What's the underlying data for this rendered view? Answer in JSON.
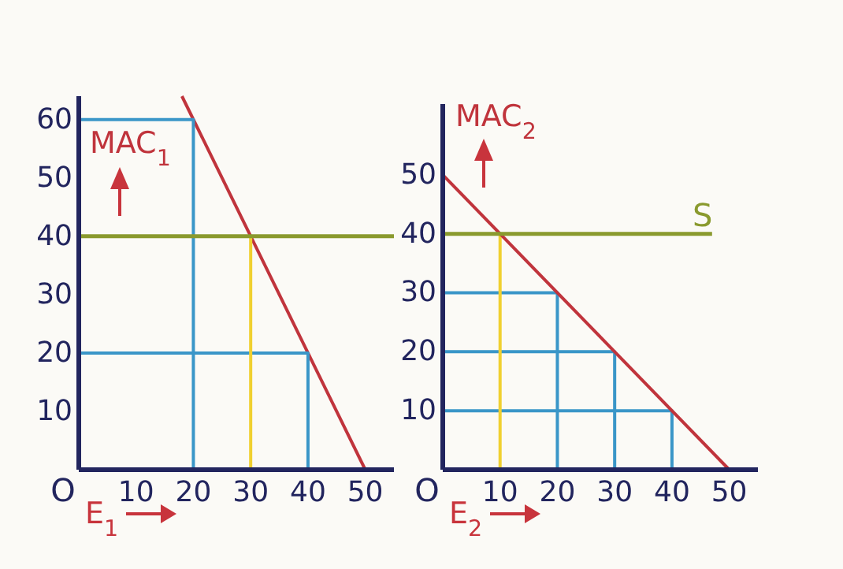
{
  "chart_data": [
    {
      "type": "line",
      "xlabel": "E$_{1}$",
      "xlim": [
        0,
        55
      ],
      "ylim": [
        0,
        64
      ],
      "xticks": [
        10,
        20,
        30,
        40,
        50
      ],
      "yticks": [
        10,
        20,
        30,
        40,
        50,
        60
      ],
      "grid": false,
      "line_style": "solid",
      "annotations": [
        "O"
      ],
      "ref_lines": [
        {
          "axis": "y",
          "value": 40,
          "color": "#8a9a2e"
        }
      ],
      "series": [
        {
          "name": "MAC$_{1}$",
          "color": "#c0343c",
          "x": [
            18,
            50
          ],
          "values": [
            64,
            0
          ]
        },
        {
          "color": "#3a96c8",
          "x": [
            0,
            20,
            20
          ],
          "values": [
            60,
            60,
            0
          ]
        },
        {
          "color": "#3a96c8",
          "x": [
            0,
            40,
            40
          ],
          "values": [
            20,
            20,
            0
          ]
        },
        {
          "color": "#f0d030",
          "x": [
            30,
            30
          ],
          "values": [
            40,
            0
          ]
        }
      ]
    },
    {
      "type": "line",
      "xlabel": "E$_{2}$",
      "xlim": [
        0,
        55
      ],
      "ylim": [
        0,
        62
      ],
      "xticks": [
        10,
        20,
        30,
        40,
        50
      ],
      "yticks": [
        10,
        20,
        30,
        40,
        50
      ],
      "grid": false,
      "line_style": "solid",
      "annotations": [
        "O"
      ],
      "ref_lines": [
        {
          "axis": "y",
          "value": 40,
          "label": "S",
          "color": "#8a9a2e"
        }
      ],
      "series": [
        {
          "color": "#3a96c8",
          "x": [
            0,
            20,
            20
          ],
          "values": [
            30,
            30,
            0
          ]
        },
        {
          "color": "#3a96c8",
          "x": [
            0,
            30,
            30
          ],
          "values": [
            20,
            20,
            0
          ]
        },
        {
          "color": "#3a96c8",
          "x": [
            0,
            40,
            40
          ],
          "values": [
            10,
            10,
            0
          ]
        },
        {
          "color": "#f0d030",
          "x": [
            10,
            10
          ],
          "values": [
            40,
            0
          ]
        },
        {
          "name": "MAC$_{2}$",
          "color": "#c0343c",
          "x": [
            0,
            50
          ],
          "values": [
            50,
            0
          ]
        }
      ]
    }
  ]
}
